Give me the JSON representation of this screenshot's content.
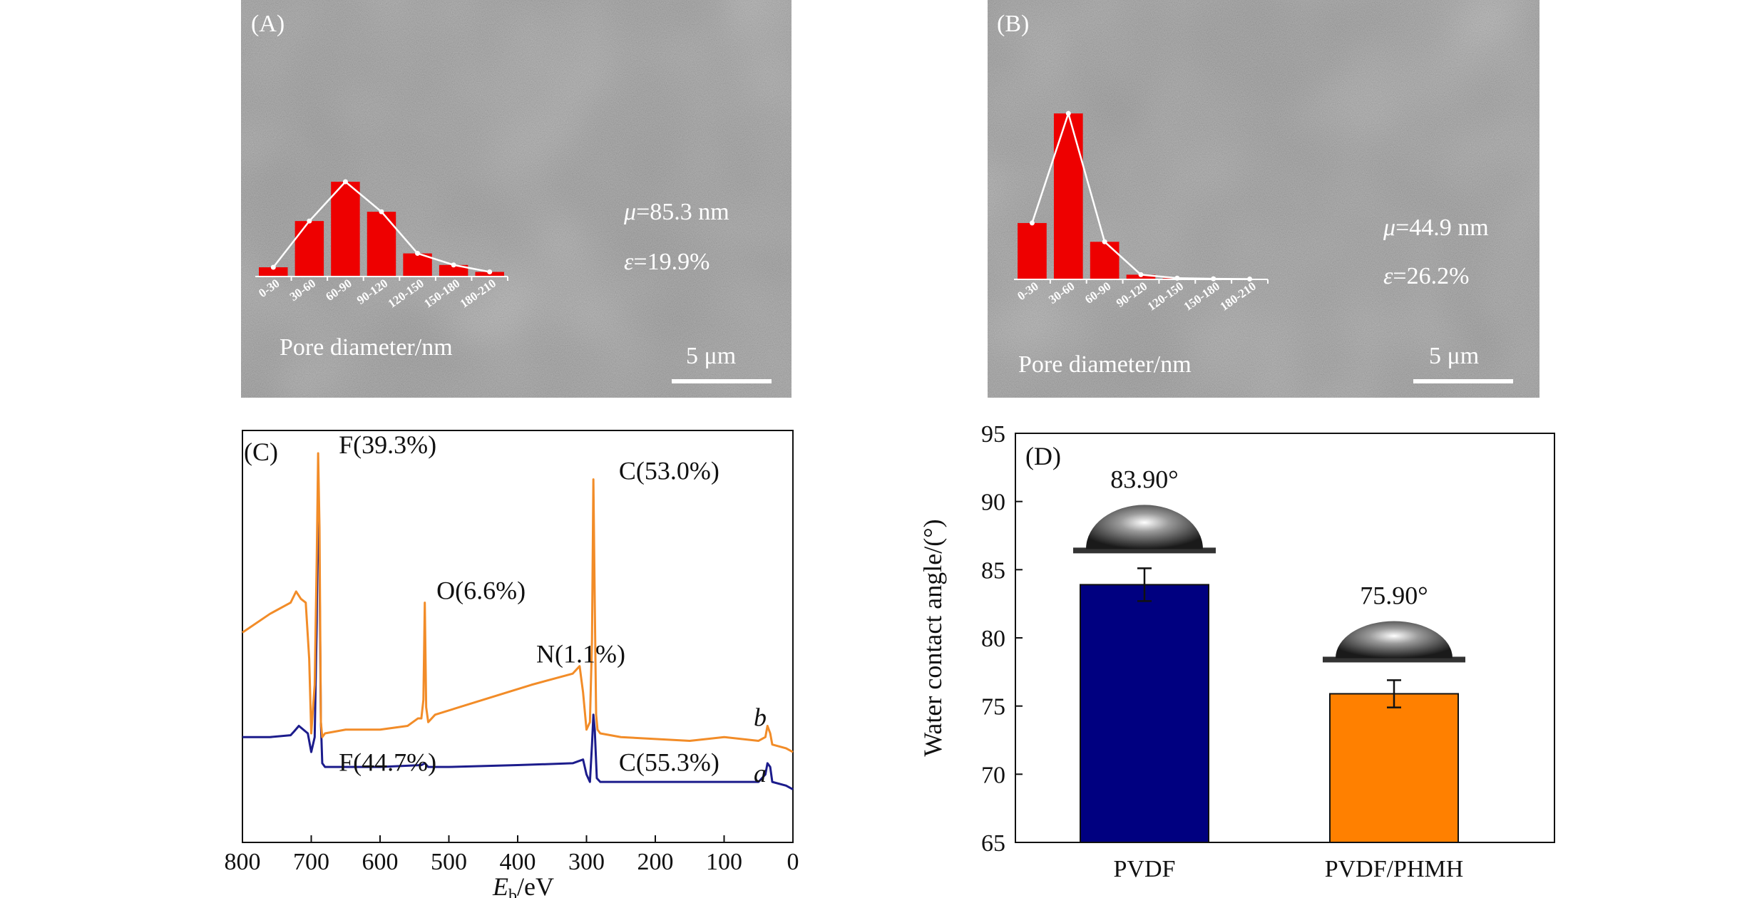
{
  "colors": {
    "hist_bar": "#ee0000",
    "hist_line": "#ffffff",
    "spectrum_a": "#1c1c8c",
    "spectrum_b": "#f28c28",
    "bar_pvdf": "#000080",
    "bar_phmh": "#ff8000",
    "sem_bg": "#8e8e8e",
    "text_on_sem": "#ffffff"
  },
  "panels": {
    "A": {
      "label": "(A)",
      "mu_symbol": "μ",
      "mu_value": "=85.3 nm",
      "eps_symbol": "ε",
      "eps_value": "=19.9%",
      "scale_bar": "5 μm",
      "hist_xlabel": "Pore diameter/nm"
    },
    "B": {
      "label": "(B)",
      "mu_symbol": "μ",
      "mu_value": "=44.9 nm",
      "eps_symbol": "ε",
      "eps_value": "=26.2%",
      "scale_bar": "5 μm",
      "hist_xlabel": "Pore diameter/nm"
    },
    "C": {
      "label": "(C)"
    },
    "D": {
      "label": "(D)"
    }
  },
  "chart_data": [
    {
      "id": "histA",
      "type": "bar",
      "title": "",
      "xlabel": "Pore diameter/nm",
      "ylabel": "",
      "categories": [
        "0-30",
        "30-60",
        "60-90",
        "90-120",
        "120-150",
        "150-180",
        "180-210"
      ],
      "values": [
        4,
        24,
        41,
        28,
        10,
        5,
        2
      ],
      "line_overlay": true,
      "ylim": [
        0,
        45
      ]
    },
    {
      "id": "histB",
      "type": "bar",
      "title": "",
      "xlabel": "Pore diameter/nm",
      "ylabel": "",
      "categories": [
        "0-30",
        "30-60",
        "60-90",
        "90-120",
        "120-150",
        "150-180",
        "180-210"
      ],
      "values": [
        18,
        53,
        12,
        1.5,
        0.4,
        0.2,
        0.1
      ],
      "line_overlay": true,
      "ylim": [
        0,
        56
      ]
    },
    {
      "id": "xps",
      "type": "line",
      "title": "",
      "xlabel_main": "E",
      "xlabel_sub": "b",
      "xlabel_unit": "/eV",
      "ylabel": "",
      "xlim": [
        800,
        0
      ],
      "x_ticks": [
        800,
        700,
        600,
        500,
        400,
        300,
        200,
        100,
        0
      ],
      "series": [
        {
          "name": "a",
          "x": [
            800,
            760,
            730,
            725,
            718,
            705,
            700,
            695,
            692,
            690,
            688,
            686,
            684,
            680,
            650,
            600,
            540,
            535,
            530,
            500,
            400,
            320,
            305,
            300,
            295,
            292,
            290,
            288,
            285,
            280,
            250,
            150,
            100,
            50,
            40,
            37,
            33,
            30,
            10,
            0
          ],
          "y": [
            0.24,
            0.24,
            0.245,
            0.255,
            0.27,
            0.25,
            0.2,
            0.24,
            0.55,
            0.96,
            0.7,
            0.28,
            0.17,
            0.16,
            0.16,
            0.16,
            0.165,
            0.17,
            0.16,
            0.16,
            0.165,
            0.17,
            0.18,
            0.14,
            0.12,
            0.22,
            0.3,
            0.26,
            0.13,
            0.12,
            0.12,
            0.12,
            0.12,
            0.12,
            0.14,
            0.17,
            0.16,
            0.12,
            0.11,
            0.1
          ]
        },
        {
          "name": "b",
          "x": [
            800,
            760,
            730,
            722,
            715,
            708,
            703,
            700,
            695,
            692,
            690,
            688,
            686,
            684,
            680,
            650,
            600,
            560,
            545,
            540,
            537,
            535,
            533,
            530,
            520,
            450,
            380,
            320,
            310,
            305,
            300,
            295,
            292,
            290,
            288,
            286,
            284,
            280,
            250,
            150,
            100,
            50,
            40,
            37,
            33,
            30,
            10,
            0
          ],
          "y": [
            0.52,
            0.57,
            0.6,
            0.63,
            0.61,
            0.6,
            0.45,
            0.25,
            0.38,
            0.72,
            1.0,
            0.8,
            0.28,
            0.24,
            0.25,
            0.26,
            0.26,
            0.27,
            0.29,
            0.29,
            0.34,
            0.6,
            0.32,
            0.28,
            0.3,
            0.34,
            0.38,
            0.41,
            0.43,
            0.36,
            0.26,
            0.28,
            0.5,
            0.93,
            0.6,
            0.3,
            0.26,
            0.25,
            0.24,
            0.23,
            0.24,
            0.23,
            0.24,
            0.27,
            0.25,
            0.22,
            0.21,
            0.2
          ]
        }
      ],
      "annotations": [
        {
          "text": "F(39.3%)",
          "x": 660,
          "y": 1.0
        },
        {
          "text": "C(53.0%)",
          "x": 253,
          "y": 0.93
        },
        {
          "text": "O(6.6%)",
          "x": 518,
          "y": 0.61
        },
        {
          "text": "N(1.1%)",
          "x": 373,
          "y": 0.44
        },
        {
          "text": "F(44.7%)",
          "x": 660,
          "y": 0.15
        },
        {
          "text": "C(55.3%)",
          "x": 253,
          "y": 0.15
        },
        {
          "text": "a",
          "x": 57,
          "y": 0.12
        },
        {
          "text": "b",
          "x": 57,
          "y": 0.27
        }
      ]
    },
    {
      "id": "contact",
      "type": "bar",
      "title": "",
      "xlabel": "",
      "ylabel": "Water contact angle/(°)",
      "categories": [
        "PVDF",
        "PVDF/PHMH"
      ],
      "values": [
        83.9,
        75.9
      ],
      "errors": [
        1.2,
        1.0
      ],
      "value_labels": [
        "83.90°",
        "75.90°"
      ],
      "ylim": [
        65,
        95
      ],
      "y_ticks": [
        65,
        70,
        75,
        80,
        85,
        90,
        95
      ]
    }
  ]
}
